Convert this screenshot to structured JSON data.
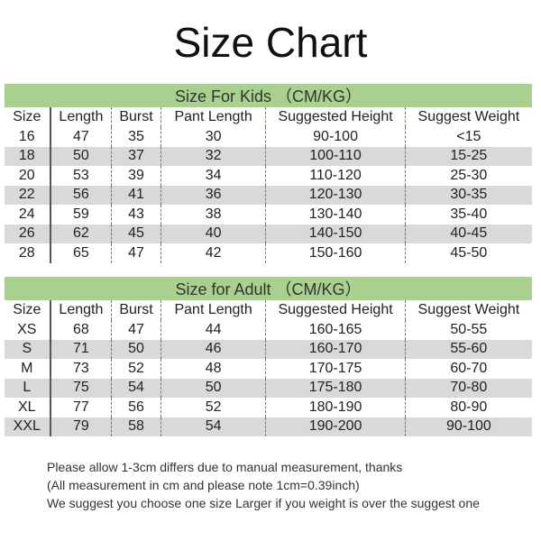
{
  "title": "Size Chart",
  "columns": [
    "Size",
    "Length",
    "Burst",
    "Pant Length",
    "Suggested Height",
    "Suggest Weight"
  ],
  "kids": {
    "heading": "Size For Kids （CM/KG）",
    "rows": [
      [
        "16",
        "47",
        "35",
        "30",
        "90-100",
        "<15"
      ],
      [
        "18",
        "50",
        "37",
        "32",
        "100-110",
        "15-25"
      ],
      [
        "20",
        "53",
        "39",
        "34",
        "110-120",
        "25-30"
      ],
      [
        "22",
        "56",
        "41",
        "36",
        "120-130",
        "30-35"
      ],
      [
        "24",
        "59",
        "43",
        "38",
        "130-140",
        "35-40"
      ],
      [
        "26",
        "62",
        "45",
        "40",
        "140-150",
        "40-45"
      ],
      [
        "28",
        "65",
        "47",
        "42",
        "150-160",
        "45-50"
      ]
    ]
  },
  "adult": {
    "heading": "Size for Adult （CM/KG）",
    "rows": [
      [
        "XS",
        "68",
        "47",
        "44",
        "160-165",
        "50-55"
      ],
      [
        "S",
        "71",
        "50",
        "46",
        "160-170",
        "55-60"
      ],
      [
        "M",
        "73",
        "52",
        "48",
        "170-175",
        "60-70"
      ],
      [
        "L",
        "75",
        "54",
        "50",
        "175-180",
        "70-80"
      ],
      [
        "XL",
        "77",
        "56",
        "52",
        "180-190",
        "80-90"
      ],
      [
        "XXL",
        "79",
        "58",
        "54",
        "190-200",
        "90-100"
      ]
    ]
  },
  "notes": [
    "Please allow 1-3cm differs due to manual measurement, thanks",
    "(All measurement in cm and please note 1cm=0.39inch)",
    "We suggest you choose one size Larger if you weight is over the suggest one"
  ],
  "colors": {
    "header_green": "#a9d08e",
    "row_gray": "#d9d9d9"
  }
}
